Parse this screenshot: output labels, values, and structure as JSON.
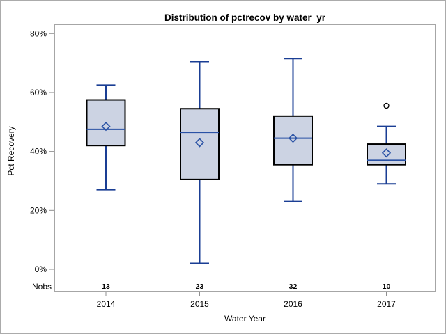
{
  "chart_data": {
    "type": "boxplot",
    "title": "Distribution of pctrecov by water_yr",
    "xlabel": "Water Year",
    "ylabel": "Pct Recovery",
    "nobs_label": "Nobs",
    "categories": [
      "2014",
      "2015",
      "2016",
      "2017"
    ],
    "ylim": [
      0,
      80
    ],
    "yticks": [
      {
        "value": 0,
        "label": "0%"
      },
      {
        "value": 20,
        "label": "20%"
      },
      {
        "value": 40,
        "label": "40%"
      },
      {
        "value": 60,
        "label": "60%"
      },
      {
        "value": 80,
        "label": "80%"
      }
    ],
    "grid": "off",
    "legend": "none",
    "series": [
      {
        "category": "2014",
        "nobs": 13,
        "whisker_low": 27,
        "q1": 42,
        "median": 47.5,
        "mean": 48.5,
        "q3": 57.5,
        "whisker_high": 62.5,
        "outliers": []
      },
      {
        "category": "2015",
        "nobs": 23,
        "whisker_low": 2,
        "q1": 30.5,
        "median": 46.5,
        "mean": 43,
        "q3": 54.5,
        "whisker_high": 70.5,
        "outliers": []
      },
      {
        "category": "2016",
        "nobs": 32,
        "whisker_low": 23,
        "q1": 35.5,
        "median": 44.5,
        "mean": 44.5,
        "q3": 52,
        "whisker_high": 71.5,
        "outliers": []
      },
      {
        "category": "2017",
        "nobs": 10,
        "whisker_low": 29,
        "q1": 35.5,
        "median": 37,
        "mean": 39.5,
        "q3": 42.5,
        "whisker_high": 48.5,
        "outliers": [
          55.5
        ]
      }
    ],
    "colors": {
      "box_fill": "#ccd3e3",
      "box_border": "#000000",
      "median": "#2a52a5",
      "whisker": "#1a3e94",
      "mean_marker": "#2a52a5",
      "outlier": "#000000",
      "frame": "#a6a6a6",
      "tick": "#8f8f8f",
      "text": "#000000",
      "background": "#ffffff"
    }
  }
}
